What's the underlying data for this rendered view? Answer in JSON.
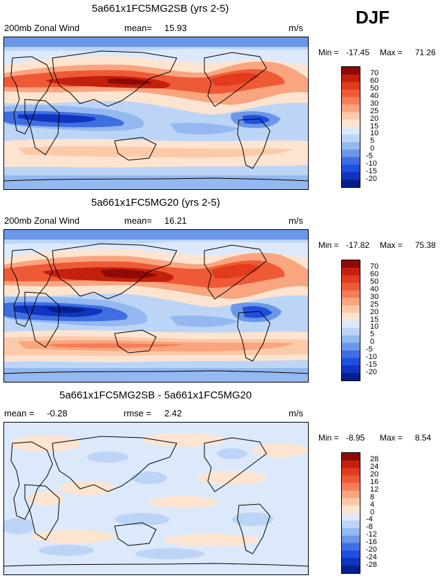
{
  "season": "DJF",
  "palette_warm": [
    "#fde4d0",
    "#fccaa9",
    "#f9a57f",
    "#f57d58",
    "#ef5a36",
    "#e03c1d",
    "#c4200e",
    "#8e0a06"
  ],
  "palette_cool": [
    "#dce9fb",
    "#bcd5f7",
    "#94b8ef",
    "#6a97e8",
    "#3f6ee2",
    "#1f4fde",
    "#1034bd",
    "#071f8c",
    "#000f6b"
  ],
  "chart_data": [
    {
      "type": "heatmap",
      "title": "5a661x1FC5MG2SB (yrs 2-5)",
      "variable": "200mb Zonal Wind",
      "stat_label": "mean=",
      "stat_value": "15.93",
      "units": "m/s",
      "min_label": "Min =",
      "min": "-17.45",
      "max_label": "Max =",
      "max": "71.26",
      "levels": [
        "70",
        "60",
        "50",
        "40",
        "30",
        "25",
        "20",
        "15",
        "10",
        "5",
        "0",
        "-5",
        "-10",
        "-15",
        "-20"
      ]
    },
    {
      "type": "heatmap",
      "title": "5a661x1FC5MG20 (yrs 2-5)",
      "variable": "200mb Zonal Wind",
      "stat_label": "mean=",
      "stat_value": "16.21",
      "units": "m/s",
      "min_label": "Min =",
      "min": "-17.82",
      "max_label": "Max =",
      "max": "75.38",
      "levels": [
        "70",
        "60",
        "50",
        "40",
        "30",
        "25",
        "20",
        "15",
        "10",
        "5",
        "0",
        "-5",
        "-10",
        "-15",
        "-20"
      ]
    },
    {
      "type": "heatmap",
      "title": "5a661x1FC5MG2SB - 5a661x1FC5MG20",
      "stat_label": "mean =",
      "stat_value": "-0.28",
      "stat2_label": "rmse =",
      "stat2_value": "2.42",
      "units": "m/s",
      "min_label": "Min =",
      "min": "-8.95",
      "max_label": "Max =",
      "max": "8.54",
      "levels": [
        "28",
        "24",
        "20",
        "16",
        "12",
        "8",
        "4",
        "0",
        "-4",
        "-8",
        "-12",
        "-16",
        "-20",
        "-24",
        "-28"
      ]
    }
  ]
}
